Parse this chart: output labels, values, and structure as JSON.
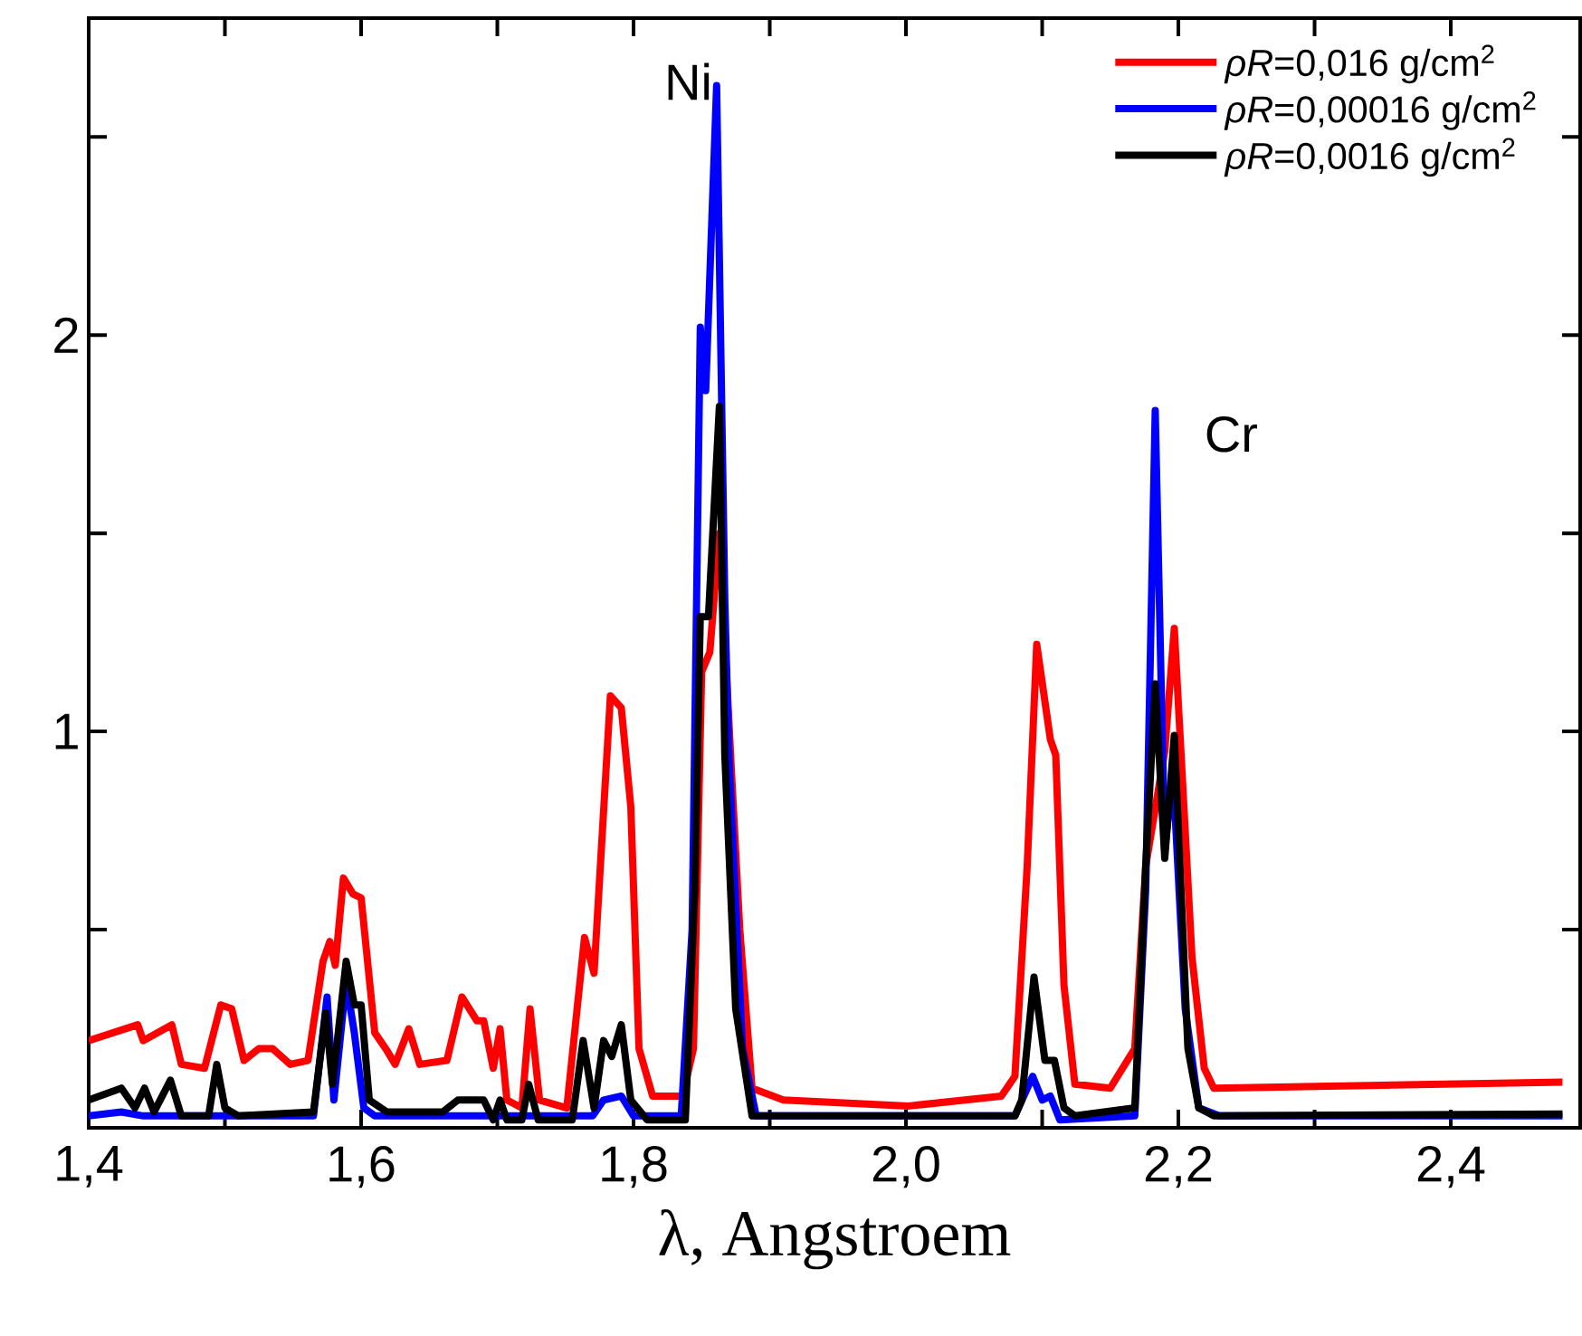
{
  "chart_data": {
    "type": "line",
    "xlabel": "λ, Angstroem",
    "xlim": [
      1.4,
      2.495
    ],
    "ylim": [
      0,
      2.8
    ],
    "xticks": [
      {
        "value": 1.4,
        "label": "1,4"
      },
      {
        "value": 1.5,
        "label": null
      },
      {
        "value": 1.6,
        "label": "1,6"
      },
      {
        "value": 1.7,
        "label": null
      },
      {
        "value": 1.8,
        "label": "1,8"
      },
      {
        "value": 1.9,
        "label": null
      },
      {
        "value": 2.0,
        "label": "2,0"
      },
      {
        "value": 2.1,
        "label": null
      },
      {
        "value": 2.2,
        "label": "2,2"
      },
      {
        "value": 2.3,
        "label": null
      },
      {
        "value": 2.4,
        "label": "2,4"
      }
    ],
    "yticks": [
      {
        "value": 0.5,
        "label": null
      },
      1,
      {
        "value": 1.5,
        "label": null
      },
      2,
      {
        "value": 2.5,
        "label": null
      }
    ],
    "legend": "top right",
    "grid": false,
    "marker": "none",
    "line_style": "solid",
    "annotations": [
      "Ni",
      "Cr"
    ],
    "series": [
      {
        "name": "*ρR*=0,016 g/cm$^{2}$",
        "color": "#ff0000",
        "x": [
          1.4,
          1.436,
          1.44,
          1.461,
          1.468,
          1.485,
          1.497,
          1.505,
          1.514,
          1.525,
          1.535,
          1.548,
          1.561,
          1.572,
          1.577,
          1.581,
          1.587,
          1.594,
          1.6,
          1.61,
          1.618,
          1.625,
          1.635,
          1.643,
          1.663,
          1.674,
          1.685,
          1.69,
          1.697,
          1.702,
          1.707,
          1.718,
          1.724,
          1.731,
          1.751,
          1.764,
          1.771,
          1.783,
          1.791,
          1.798,
          1.804,
          1.814,
          1.836,
          1.844,
          1.85,
          1.856,
          1.863,
          1.872,
          1.878,
          1.887,
          1.91,
          2.002,
          2.07,
          2.08,
          2.089,
          2.096,
          2.106,
          2.11,
          2.116,
          2.124,
          2.15,
          2.168,
          2.176,
          2.19,
          2.197,
          2.21,
          2.219,
          2.226,
          2.482
        ],
        "values": [
          0.22,
          0.26,
          0.22,
          0.26,
          0.16,
          0.15,
          0.31,
          0.3,
          0.17,
          0.2,
          0.2,
          0.16,
          0.17,
          0.42,
          0.47,
          0.41,
          0.63,
          0.59,
          0.58,
          0.24,
          0.2,
          0.16,
          0.25,
          0.16,
          0.17,
          0.33,
          0.27,
          0.27,
          0.15,
          0.25,
          0.07,
          0.05,
          0.3,
          0.07,
          0.05,
          0.48,
          0.39,
          1.09,
          1.06,
          0.81,
          0.2,
          0.08,
          0.08,
          0.2,
          1.15,
          1.2,
          1.5,
          0.89,
          0.5,
          0.1,
          0.07,
          0.055,
          0.08,
          0.13,
          0.66,
          1.22,
          0.98,
          0.94,
          0.36,
          0.11,
          0.1,
          0.2,
          0.66,
          0.95,
          1.26,
          0.43,
          0.15,
          0.1,
          0.115
        ]
      },
      {
        "name": "*ρR*=0,00016 g/cm$^{2}$",
        "color": "#0000ff",
        "x": [
          1.4,
          1.424,
          1.44,
          1.565,
          1.575,
          1.58,
          1.589,
          1.595,
          1.602,
          1.61,
          1.77,
          1.778,
          1.791,
          1.8,
          1.835,
          1.843,
          1.849,
          1.853,
          1.861,
          1.867,
          1.87,
          1.88,
          1.89,
          2.08,
          2.093,
          2.1,
          2.106,
          2.113,
          2.168,
          2.176,
          2.183,
          2.19,
          2.196,
          2.205,
          2.215,
          2.23,
          2.482
        ],
        "values": [
          0.03,
          0.04,
          0.03,
          0.03,
          0.33,
          0.07,
          0.37,
          0.24,
          0.05,
          0.03,
          0.03,
          0.07,
          0.08,
          0.03,
          0.03,
          0.5,
          2.02,
          1.86,
          2.63,
          1.33,
          0.94,
          0.2,
          0.03,
          0.03,
          0.13,
          0.07,
          0.08,
          0.02,
          0.03,
          0.6,
          1.81,
          0.7,
          0.9,
          0.3,
          0.05,
          0.03,
          0.03
        ]
      },
      {
        "name": "*ρR*=0,0016 g/cm$^{2}$",
        "color": "#000000",
        "x": [
          1.4,
          1.424,
          1.434,
          1.441,
          1.448,
          1.46,
          1.468,
          1.488,
          1.494,
          1.5,
          1.51,
          1.565,
          1.574,
          1.579,
          1.589,
          1.595,
          1.6,
          1.606,
          1.619,
          1.66,
          1.671,
          1.69,
          1.697,
          1.702,
          1.707,
          1.718,
          1.723,
          1.73,
          1.755,
          1.763,
          1.771,
          1.778,
          1.784,
          1.791,
          1.798,
          1.81,
          1.838,
          1.845,
          1.849,
          1.855,
          1.863,
          1.867,
          1.875,
          1.887,
          2.08,
          2.085,
          2.094,
          2.102,
          2.109,
          2.116,
          2.124,
          2.168,
          2.176,
          2.183,
          2.19,
          2.197,
          2.207,
          2.215,
          2.226,
          2.482
        ],
        "values": [
          0.07,
          0.1,
          0.05,
          0.1,
          0.04,
          0.12,
          0.03,
          0.03,
          0.16,
          0.05,
          0.03,
          0.04,
          0.29,
          0.11,
          0.42,
          0.31,
          0.31,
          0.07,
          0.04,
          0.04,
          0.07,
          0.07,
          0.02,
          0.07,
          0.02,
          0.02,
          0.11,
          0.02,
          0.02,
          0.22,
          0.05,
          0.22,
          0.18,
          0.26,
          0.07,
          0.02,
          0.02,
          0.6,
          1.29,
          1.29,
          1.82,
          0.94,
          0.3,
          0.03,
          0.03,
          0.07,
          0.38,
          0.17,
          0.17,
          0.05,
          0.03,
          0.05,
          0.66,
          1.12,
          0.68,
          0.99,
          0.2,
          0.05,
          0.03,
          0.035
        ]
      }
    ]
  }
}
